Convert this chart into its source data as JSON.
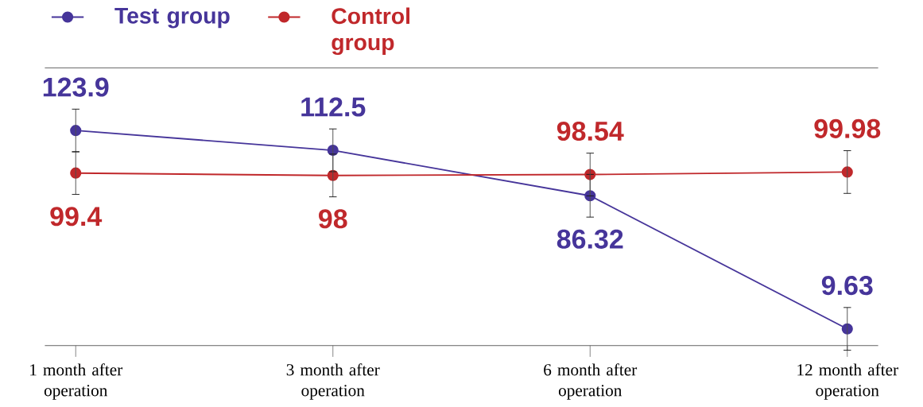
{
  "chart_data": {
    "type": "line",
    "categories": [
      "1 month after operation",
      "3 month after operation",
      "6 month after operation",
      "12 month after operation"
    ],
    "series": [
      {
        "name": "Test group",
        "color": "#46359a",
        "values": [
          123.9,
          112.5,
          86.32,
          9.63
        ]
      },
      {
        "name": "Control group",
        "color": "#c0282b",
        "values": [
          99.4,
          98,
          98.54,
          99.98
        ]
      }
    ],
    "ylim": [
      0,
      160
    ],
    "data_labels": true,
    "legend": "top left",
    "marker": "circle",
    "line_style": "solid"
  }
}
